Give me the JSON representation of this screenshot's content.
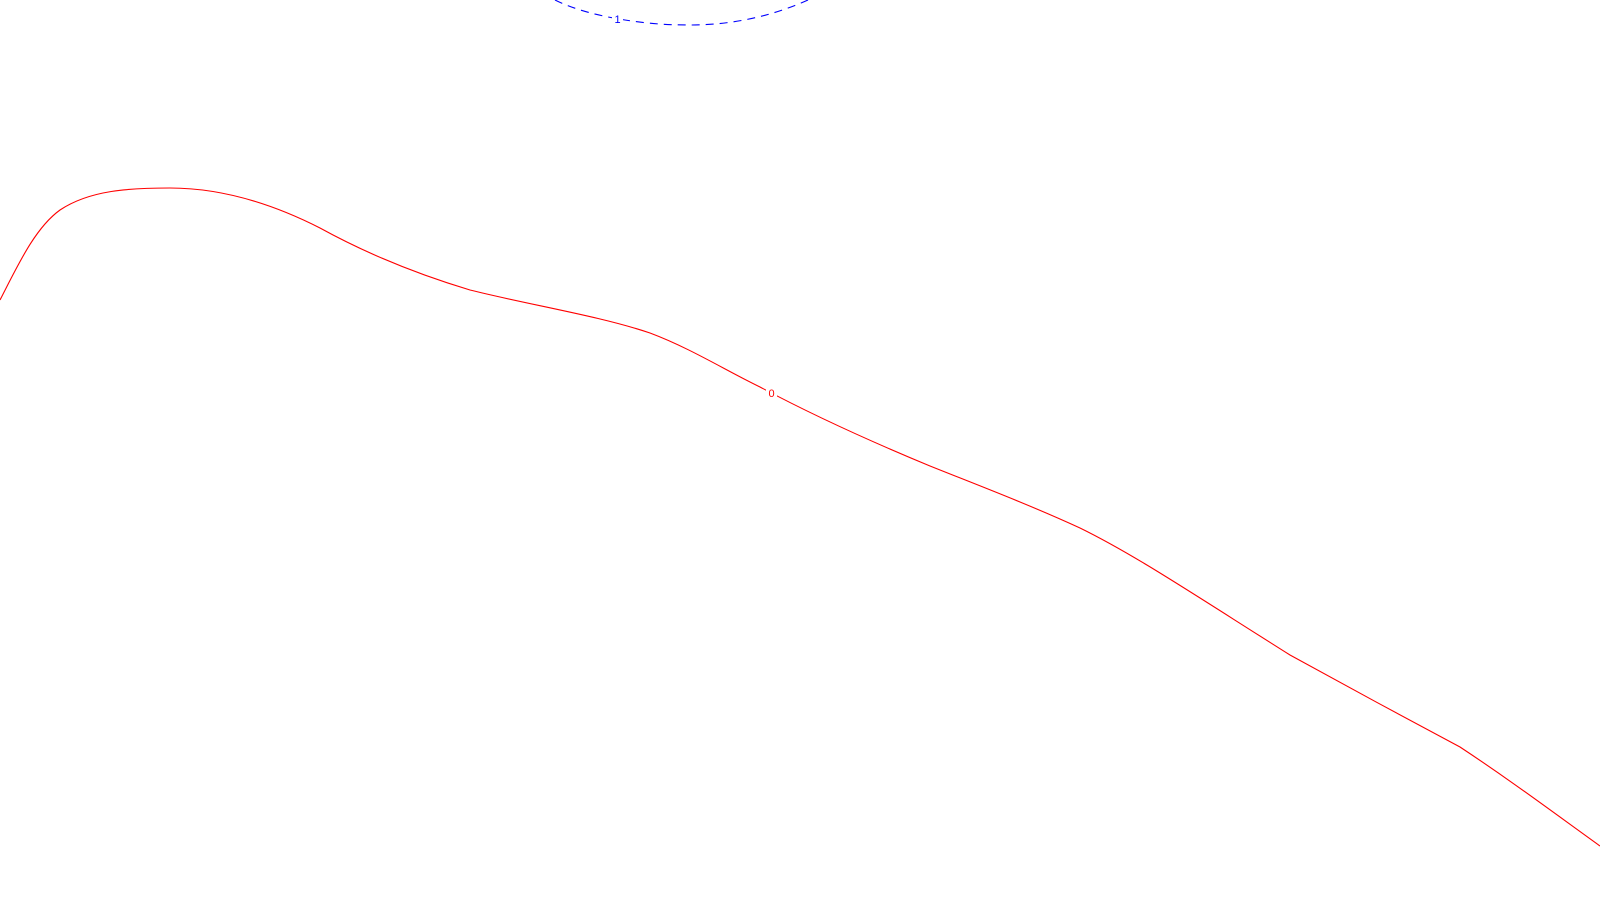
{
  "map": {
    "contours": [
      {
        "label": "0",
        "color": "#ff0000",
        "style": "solid"
      },
      {
        "label": "1",
        "color": "#0000ff",
        "style": "dashed"
      }
    ]
  }
}
